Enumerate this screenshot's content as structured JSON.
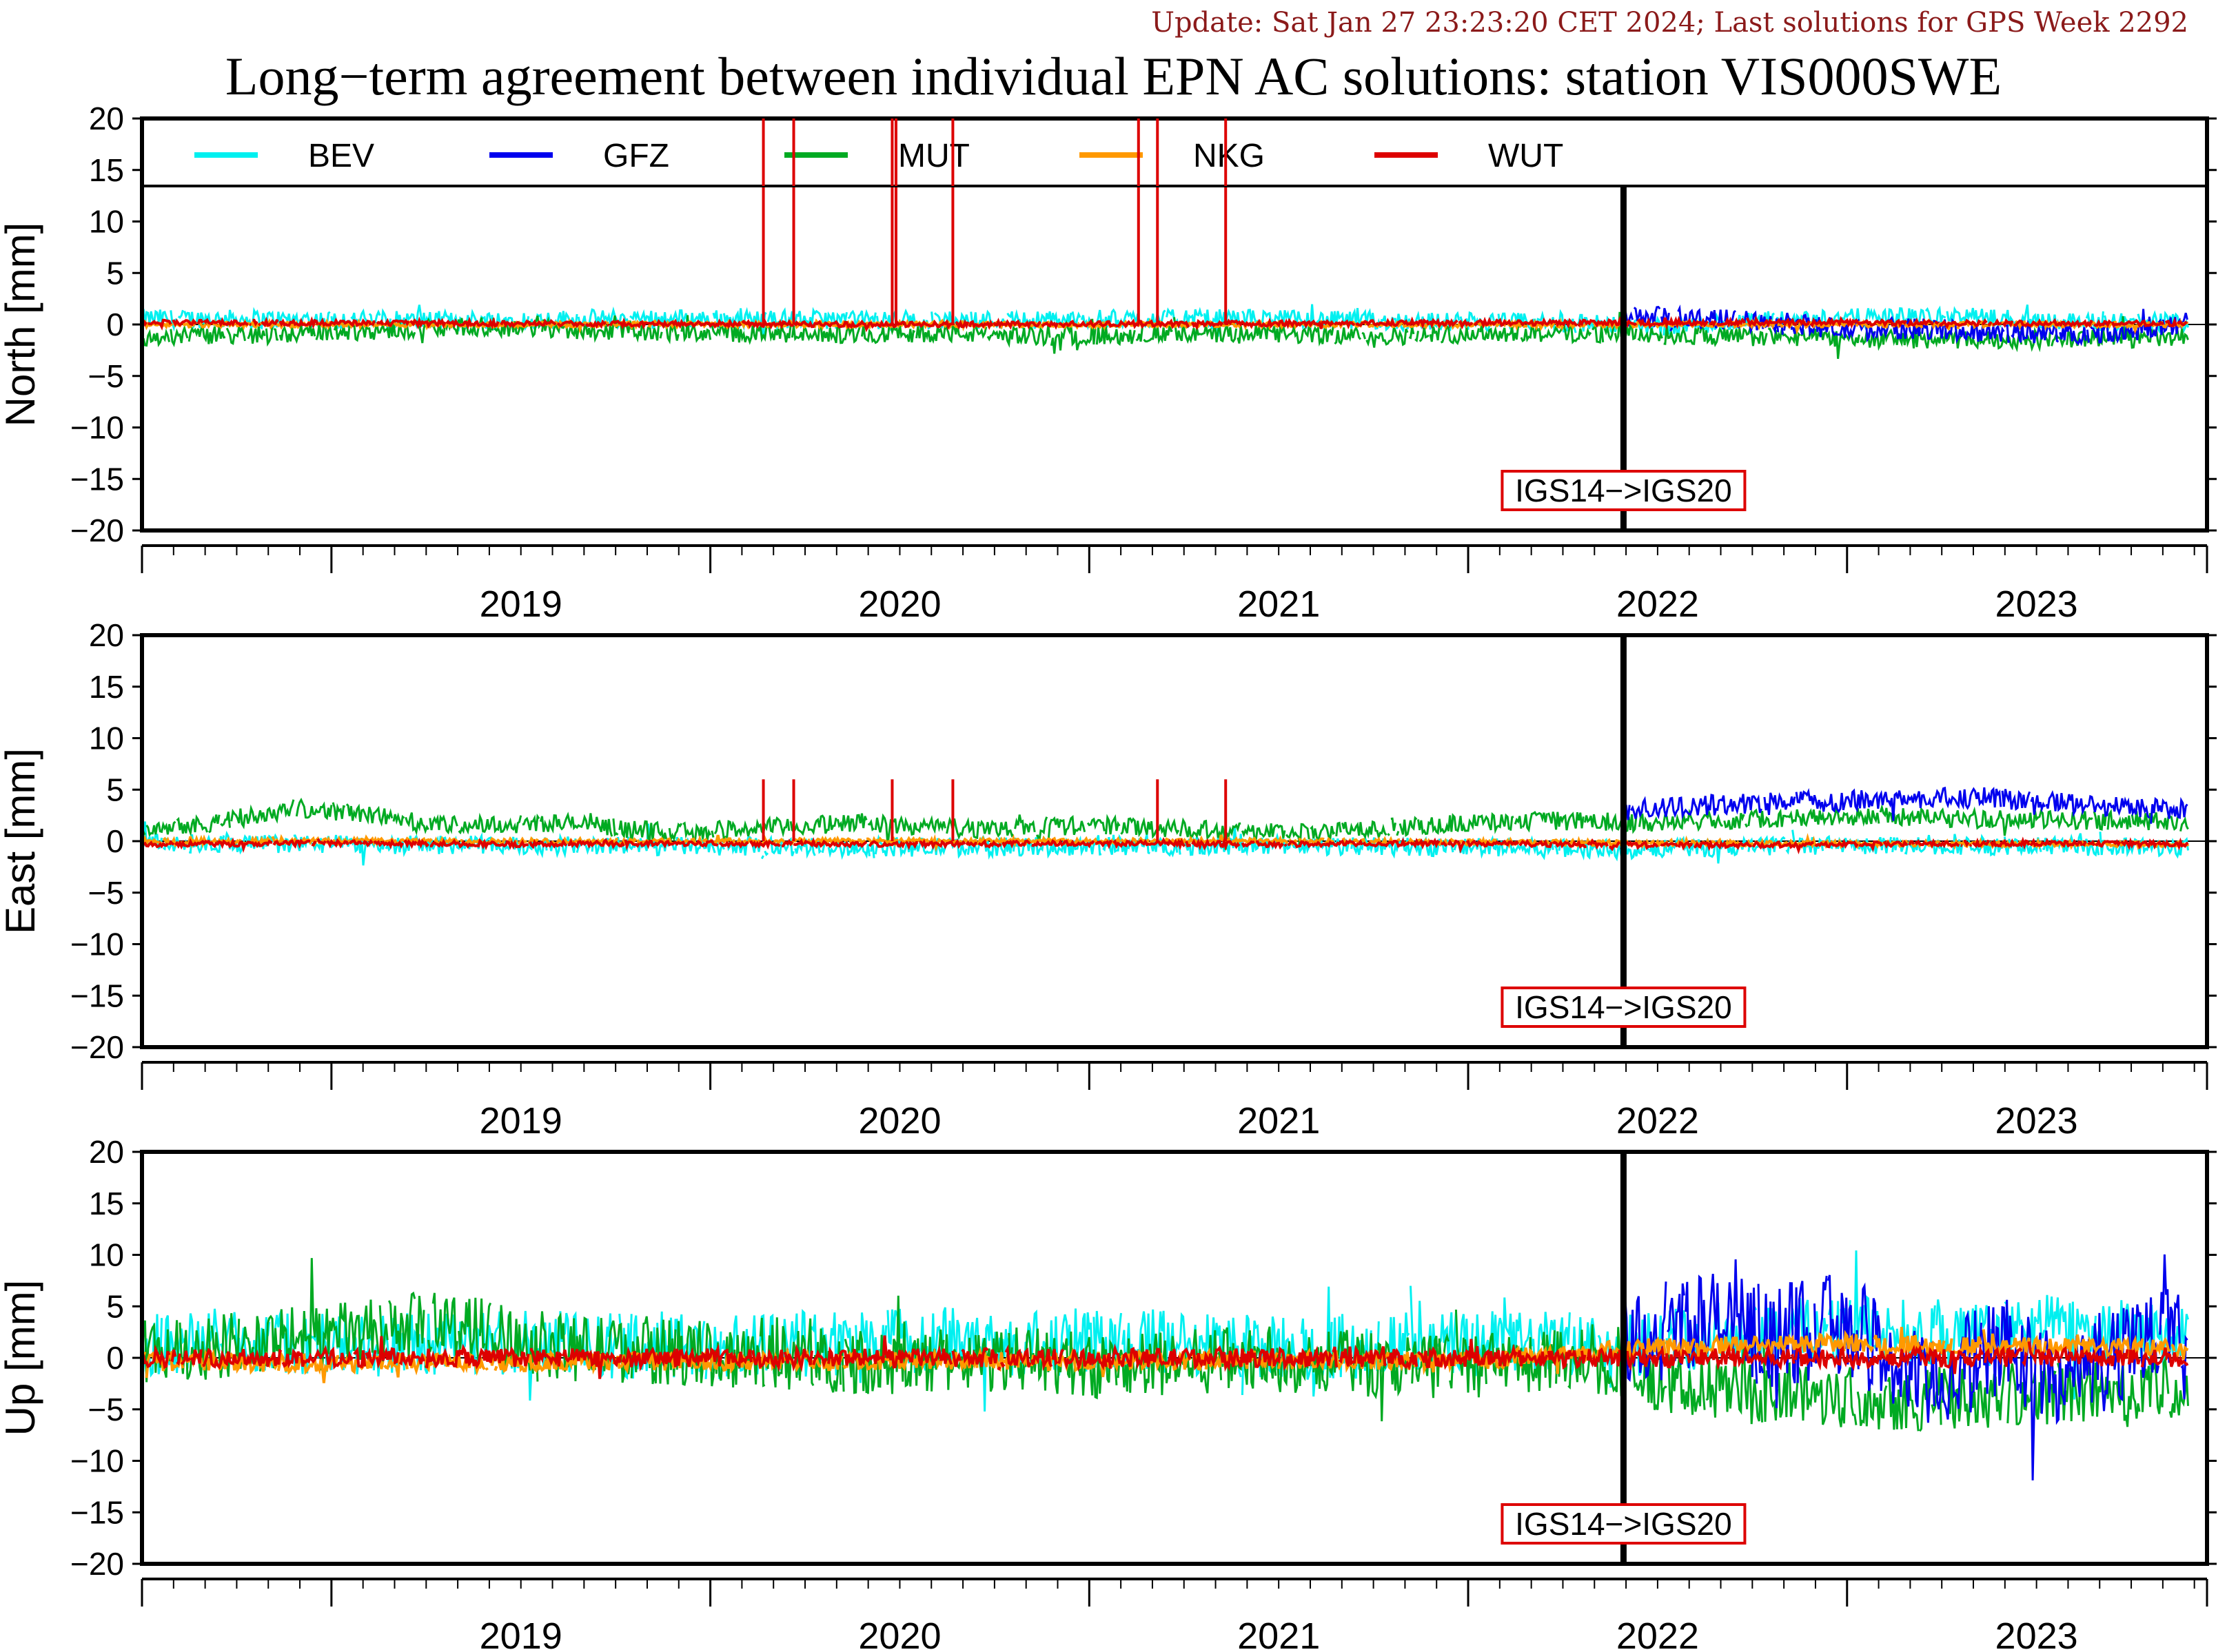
{
  "header": {
    "update": "Update: Sat Jan 27 23:23:20 CET 2024; Last solutions for GPS Week 2292",
    "title": "Long−term agreement between individual EPN AC solutions: station VIS000SWE"
  },
  "colors": {
    "BEV": "#00f0f0",
    "GFZ": "#0000ee",
    "MUT": "#00aa22",
    "NKG": "#ff9900",
    "WUT": "#dd0000",
    "annotation_border": "#dd0000"
  },
  "legend": [
    "BEV",
    "GFZ",
    "MUT",
    "NKG",
    "WUT"
  ],
  "annotation": "IGS14−>IGS20",
  "chart_data": [
    {
      "type": "line",
      "ylabel": "North [mm]",
      "ylim": [
        -20,
        20
      ],
      "yticks": [
        "20",
        "15",
        "10",
        "5",
        "0",
        "−5",
        "−10",
        "−15",
        "−20"
      ],
      "xlim": [
        2018.5,
        2023.95
      ],
      "year_labels": [
        "2019",
        "2020",
        "2021",
        "2022",
        "2023"
      ],
      "frame_change": 2022.41,
      "series": [
        {
          "name": "BEV",
          "values": [
            [
              2018.5,
              0.6
            ],
            [
              2018.9,
              0.5
            ],
            [
              2019.3,
              0.4
            ],
            [
              2019.8,
              0.6
            ],
            [
              2020.2,
              0.5
            ],
            [
              2020.6,
              0.4
            ],
            [
              2021.0,
              0.5
            ],
            [
              2021.4,
              0.6
            ],
            [
              2021.8,
              0.3
            ],
            [
              2022.2,
              0.2
            ],
            [
              2022.5,
              -0.2
            ],
            [
              2022.9,
              0.6
            ],
            [
              2023.3,
              0.8
            ],
            [
              2023.6,
              0.3
            ],
            [
              2023.9,
              0.2
            ]
          ]
        },
        {
          "name": "GFZ",
          "values": [
            [
              2022.41,
              0.8
            ],
            [
              2022.6,
              0.6
            ],
            [
              2022.8,
              0.3
            ],
            [
              2023.0,
              -0.5
            ],
            [
              2023.2,
              -0.4
            ],
            [
              2023.4,
              -0.8
            ],
            [
              2023.6,
              -0.9
            ],
            [
              2023.8,
              -0.5
            ],
            [
              2023.9,
              0.2
            ]
          ]
        },
        {
          "name": "MUT",
          "values": [
            [
              2018.5,
              -1.2
            ],
            [
              2018.8,
              -1.0
            ],
            [
              2019.1,
              -0.6
            ],
            [
              2019.4,
              -0.2
            ],
            [
              2019.7,
              -0.6
            ],
            [
              2020.0,
              -0.8
            ],
            [
              2020.3,
              -1.0
            ],
            [
              2020.6,
              -0.8
            ],
            [
              2020.9,
              -1.2
            ],
            [
              2021.2,
              -0.9
            ],
            [
              2021.5,
              -1.0
            ],
            [
              2021.8,
              -1.1
            ],
            [
              2022.1,
              -0.8
            ],
            [
              2022.4,
              -0.9
            ],
            [
              2022.7,
              -1.2
            ],
            [
              2023.0,
              -1.3
            ],
            [
              2023.3,
              -1.5
            ],
            [
              2023.6,
              -1.4
            ],
            [
              2023.9,
              -1.3
            ]
          ]
        },
        {
          "name": "NKG",
          "values": [
            [
              2018.5,
              0.0
            ],
            [
              2019.5,
              0.0
            ],
            [
              2020.5,
              0.0
            ],
            [
              2021.5,
              0.0
            ],
            [
              2022.5,
              0.0
            ],
            [
              2023.9,
              0.0
            ]
          ]
        },
        {
          "name": "WUT",
          "values": [
            [
              2018.5,
              0.2
            ],
            [
              2019.5,
              0.1
            ],
            [
              2020.5,
              0.0
            ],
            [
              2021.5,
              0.1
            ],
            [
              2022.5,
              0.2
            ],
            [
              2023.9,
              0.1
            ]
          ]
        }
      ],
      "spikes": {
        "series": "WUT",
        "x": [
          2020.14,
          2020.22,
          2020.48,
          2020.49,
          2020.64,
          2021.13,
          2021.18,
          2021.36
        ],
        "y": 20
      }
    },
    {
      "type": "line",
      "ylabel": "East [mm]",
      "ylim": [
        -20,
        20
      ],
      "yticks": [
        "20",
        "15",
        "10",
        "5",
        "0",
        "−5",
        "−10",
        "−15",
        "−20"
      ],
      "xlim": [
        2018.5,
        2023.95
      ],
      "year_labels": [
        "2019",
        "2020",
        "2021",
        "2022",
        "2023"
      ],
      "frame_change": 2022.41,
      "series": [
        {
          "name": "BEV",
          "values": [
            [
              2018.5,
              -0.2
            ],
            [
              2019.0,
              -0.3
            ],
            [
              2019.5,
              -0.4
            ],
            [
              2020.0,
              -0.5
            ],
            [
              2020.5,
              -0.6
            ],
            [
              2021.0,
              -0.5
            ],
            [
              2021.5,
              -0.4
            ],
            [
              2022.0,
              -0.6
            ],
            [
              2022.4,
              -0.8
            ],
            [
              2022.8,
              -0.5
            ],
            [
              2023.2,
              -0.4
            ],
            [
              2023.6,
              -0.5
            ],
            [
              2023.9,
              -0.6
            ]
          ]
        },
        {
          "name": "GFZ",
          "values": [
            [
              2022.41,
              3.0
            ],
            [
              2022.6,
              3.4
            ],
            [
              2022.8,
              3.8
            ],
            [
              2023.0,
              3.9
            ],
            [
              2023.2,
              4.2
            ],
            [
              2023.4,
              4.1
            ],
            [
              2023.6,
              3.6
            ],
            [
              2023.8,
              3.2
            ],
            [
              2023.9,
              3.0
            ]
          ]
        },
        {
          "name": "MUT",
          "values": [
            [
              2018.5,
              1.4
            ],
            [
              2018.7,
              1.8
            ],
            [
              2018.9,
              3.2
            ],
            [
              2019.1,
              2.6
            ],
            [
              2019.3,
              1.5
            ],
            [
              2019.6,
              1.8
            ],
            [
              2019.9,
              0.8
            ],
            [
              2020.1,
              1.2
            ],
            [
              2020.4,
              1.8
            ],
            [
              2020.7,
              1.2
            ],
            [
              2021.0,
              1.5
            ],
            [
              2021.3,
              1.2
            ],
            [
              2021.6,
              0.8
            ],
            [
              2021.9,
              1.6
            ],
            [
              2022.2,
              2.0
            ],
            [
              2022.5,
              1.8
            ],
            [
              2022.8,
              2.2
            ],
            [
              2023.1,
              2.4
            ],
            [
              2023.4,
              2.1
            ],
            [
              2023.7,
              2.0
            ],
            [
              2023.9,
              1.8
            ]
          ]
        },
        {
          "name": "NKG",
          "values": [
            [
              2018.5,
              0.0
            ],
            [
              2019.5,
              0.0
            ],
            [
              2020.5,
              0.0
            ],
            [
              2021.5,
              0.0
            ],
            [
              2022.5,
              -0.2
            ],
            [
              2023.9,
              -0.3
            ]
          ]
        },
        {
          "name": "WUT",
          "values": [
            [
              2018.5,
              -0.3
            ],
            [
              2019.0,
              -0.2
            ],
            [
              2019.5,
              -0.3
            ],
            [
              2020.0,
              -0.2
            ],
            [
              2020.5,
              -0.3
            ],
            [
              2021.0,
              -0.2
            ],
            [
              2021.5,
              -0.3
            ],
            [
              2022.0,
              -0.2
            ],
            [
              2022.5,
              -0.4
            ],
            [
              2023.0,
              -0.3
            ],
            [
              2023.5,
              -0.2
            ],
            [
              2023.9,
              -0.3
            ]
          ]
        }
      ],
      "spikes": {
        "series": "WUT",
        "x": [
          2020.14,
          2020.22,
          2020.48,
          2020.64,
          2021.18,
          2021.36
        ],
        "y": 6
      }
    },
    {
      "type": "line",
      "ylabel": "Up [mm]",
      "ylim": [
        -20,
        20
      ],
      "yticks": [
        "20",
        "15",
        "10",
        "5",
        "0",
        "−5",
        "−10",
        "−15",
        "−20"
      ],
      "xlim": [
        2018.5,
        2023.95
      ],
      "year_labels": [
        "2019",
        "2020",
        "2021",
        "2022",
        "2023"
      ],
      "frame_change": 2022.41,
      "series": [
        {
          "name": "BEV",
          "values": [
            [
              2018.5,
              1.5
            ],
            [
              2018.8,
              1.8
            ],
            [
              2019.1,
              1.0
            ],
            [
              2019.4,
              1.6
            ],
            [
              2019.7,
              1.2
            ],
            [
              2020.0,
              1.0
            ],
            [
              2020.3,
              1.4
            ],
            [
              2020.6,
              1.8
            ],
            [
              2020.9,
              1.2
            ],
            [
              2021.2,
              1.6
            ],
            [
              2021.5,
              1.0
            ],
            [
              2021.8,
              1.2
            ],
            [
              2022.1,
              1.4
            ],
            [
              2022.4,
              1.2
            ],
            [
              2022.7,
              2.5
            ],
            [
              2023.0,
              3.0
            ],
            [
              2023.3,
              2.0
            ],
            [
              2023.6,
              3.2
            ],
            [
              2023.9,
              1.5
            ]
          ]
        },
        {
          "name": "GFZ",
          "values": [
            [
              2022.41,
              1.5
            ],
            [
              2022.6,
              4.0
            ],
            [
              2022.8,
              2.0
            ],
            [
              2023.0,
              3.5
            ],
            [
              2023.2,
              -3.0
            ],
            [
              2023.4,
              1.0
            ],
            [
              2023.6,
              -2.0
            ],
            [
              2023.8,
              2.5
            ],
            [
              2023.9,
              4.0
            ]
          ]
        },
        {
          "name": "MUT",
          "values": [
            [
              2018.5,
              0.5
            ],
            [
              2018.8,
              1.5
            ],
            [
              2019.1,
              2.5
            ],
            [
              2019.3,
              3.5
            ],
            [
              2019.6,
              1.0
            ],
            [
              2019.9,
              0.5
            ],
            [
              2020.2,
              0.0
            ],
            [
              2020.5,
              -0.5
            ],
            [
              2020.8,
              0.0
            ],
            [
              2021.1,
              -1.0
            ],
            [
              2021.4,
              0.0
            ],
            [
              2021.7,
              -0.5
            ],
            [
              2022.0,
              -1.0
            ],
            [
              2022.3,
              0.0
            ],
            [
              2022.6,
              -3.0
            ],
            [
              2022.9,
              -3.5
            ],
            [
              2023.2,
              -4.0
            ],
            [
              2023.5,
              -3.5
            ],
            [
              2023.8,
              -3.0
            ],
            [
              2023.9,
              -3.5
            ]
          ]
        },
        {
          "name": "NKG",
          "values": [
            [
              2018.5,
              -0.4
            ],
            [
              2019.0,
              -0.5
            ],
            [
              2019.5,
              -0.4
            ],
            [
              2020.0,
              -0.3
            ],
            [
              2020.5,
              -0.3
            ],
            [
              2021.0,
              -0.3
            ],
            [
              2021.5,
              -0.2
            ],
            [
              2022.0,
              -0.3
            ],
            [
              2022.41,
              0.8
            ],
            [
              2022.7,
              1.2
            ],
            [
              2023.0,
              1.5
            ],
            [
              2023.3,
              1.2
            ],
            [
              2023.6,
              1.0
            ],
            [
              2023.9,
              1.0
            ]
          ]
        },
        {
          "name": "WUT",
          "values": [
            [
              2018.5,
              0.0
            ],
            [
              2020.0,
              0.0
            ],
            [
              2022.0,
              0.0
            ],
            [
              2023.9,
              0.0
            ]
          ]
        }
      ]
    }
  ]
}
